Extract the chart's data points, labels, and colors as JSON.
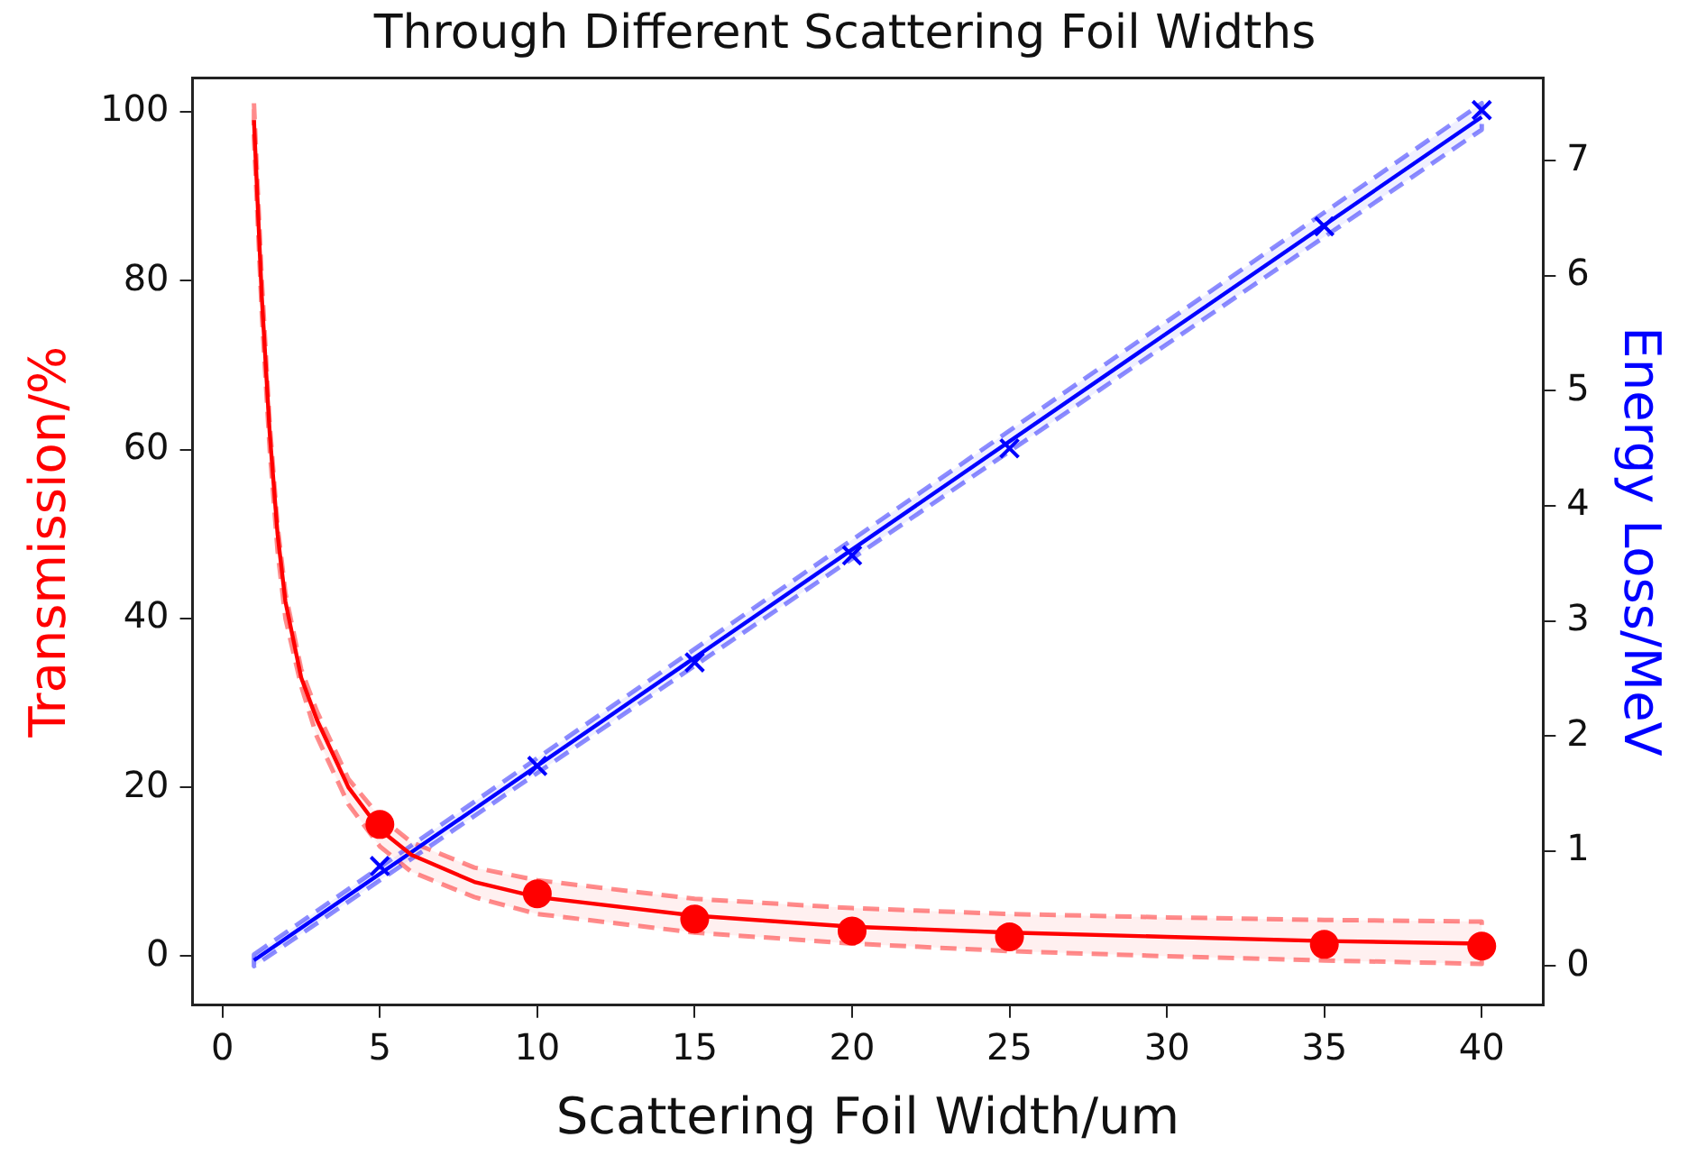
{
  "chart_data": {
    "type": "scatter",
    "title": "Through Different Scattering Foil Widths",
    "xlabel": "Scattering Foil Width/um",
    "ylabel": "Transmission/%",
    "y2label": "Energy Loss/MeV",
    "xlim": [
      -0.95,
      41.95
    ],
    "xticks": [
      0,
      5,
      10,
      15,
      20,
      25,
      30,
      35,
      40
    ],
    "ylim": [
      -5.8,
      104
    ],
    "yticks": [
      0,
      20,
      40,
      60,
      80,
      100
    ],
    "y2lim": [
      -0.34,
      7.72
    ],
    "y2ticks": [
      0,
      1,
      2,
      3,
      4,
      5,
      6,
      7
    ],
    "grid": false,
    "legend": false,
    "series": [
      {
        "type": "scatter",
        "color": "#ff0000",
        "marker": "circle",
        "axis": "y",
        "x": [
          5,
          10,
          15,
          20,
          25,
          35,
          40
        ],
        "values": [
          15.6,
          7.4,
          4.4,
          3.0,
          2.3,
          1.4,
          1.2
        ]
      },
      {
        "type": "line",
        "color": "#ff0000",
        "marker": "none",
        "axis": "y",
        "x": [
          1,
          1.25,
          1.5,
          1.75,
          2,
          2.5,
          3,
          4,
          5,
          6,
          8,
          10,
          15,
          20,
          25,
          30,
          35,
          40
        ],
        "values": [
          99,
          78,
          62,
          50,
          42,
          33,
          28,
          20,
          15,
          12,
          8.8,
          7,
          4.8,
          3.5,
          2.8,
          2.3,
          1.8,
          1.5
        ],
        "lower": [
          97,
          76,
          60,
          48,
          40,
          32,
          26,
          18,
          13,
          10,
          7,
          5,
          2.8,
          1.5,
          0.6,
          0,
          -0.5,
          -0.9
        ],
        "upper": [
          101,
          80,
          63,
          51,
          43,
          34,
          29,
          21,
          16.5,
          13.5,
          10.5,
          9,
          6.8,
          5.7,
          5,
          4.6,
          4.3,
          4.1
        ]
      },
      {
        "type": "scatter",
        "color": "#0000ff",
        "marker": "cross",
        "axis": "y2",
        "x": [
          5,
          10,
          15,
          20,
          25,
          35,
          40
        ],
        "values": [
          0.87,
          1.74,
          2.64,
          3.57,
          4.5,
          6.43,
          7.44
        ]
      },
      {
        "type": "line",
        "color": "#0000ff",
        "marker": "none",
        "axis": "y2",
        "x": [
          1,
          40
        ],
        "values": [
          0.05,
          7.38
        ],
        "lower": [
          0,
          7.27
        ],
        "upper": [
          0.1,
          7.5
        ]
      }
    ]
  }
}
